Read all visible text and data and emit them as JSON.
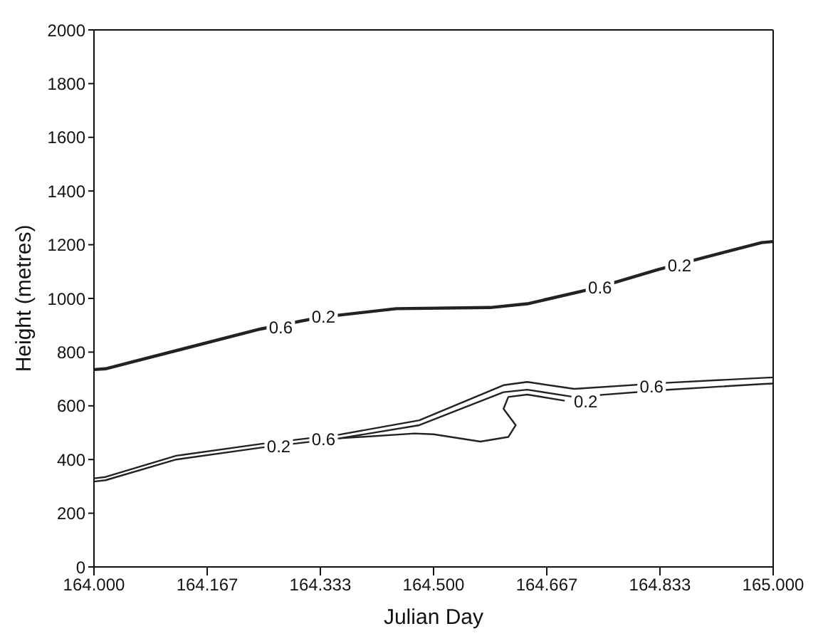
{
  "chart_data": {
    "type": "line",
    "xlabel": "Julian Day",
    "ylabel": "Height (metres)",
    "xlim": [
      164.0,
      165.0
    ],
    "xticks": [
      {
        "value": 164.0,
        "label": "164.000"
      },
      {
        "value": 164.1667,
        "label": "164.167"
      },
      {
        "value": 164.3333,
        "label": "164.333"
      },
      {
        "value": 164.5,
        "label": "164.500"
      },
      {
        "value": 164.6667,
        "label": "164.667"
      },
      {
        "value": 164.8333,
        "label": "164.833"
      },
      {
        "value": 165.0,
        "label": "165.000"
      }
    ],
    "ylim": [
      0,
      2000
    ],
    "yticks": [
      0,
      200,
      400,
      600,
      800,
      1000,
      1200,
      1400,
      1600,
      1800,
      2000
    ],
    "grid": false,
    "marker": "none",
    "line_style": "solid",
    "series": [
      {
        "color": "#222222",
        "x": [
          164.0,
          164.017,
          164.245,
          164.334,
          164.445,
          164.583,
          164.638,
          164.741,
          164.831,
          164.983,
          165.0
        ],
        "values": [
          735,
          738,
          886,
          930,
          962,
          966,
          980,
          1040,
          1108,
          1208,
          1212
        ]
      },
      {
        "color": "#222222",
        "x": [
          164.0,
          164.017,
          164.121,
          164.245,
          164.362,
          164.479,
          164.603,
          164.638,
          164.707,
          164.845,
          164.983,
          165.0
        ],
        "values": [
          330,
          335,
          414,
          458,
          493,
          546,
          677,
          689,
          663,
          686,
          704,
          706
        ]
      },
      {
        "color": "#222222",
        "x": [
          164.0,
          164.017,
          164.121,
          164.245,
          164.362,
          164.479,
          164.603,
          164.638,
          164.707,
          164.845,
          164.983,
          165.0
        ],
        "values": [
          318,
          323,
          400,
          444,
          479,
          528,
          651,
          660,
          633,
          660,
          681,
          683
        ]
      },
      {
        "color": "#222222",
        "x": [
          164.362,
          164.472,
          164.5,
          164.569,
          164.61,
          164.621,
          164.603,
          164.61,
          164.638,
          164.693
        ],
        "values": [
          479,
          497,
          494,
          467,
          484,
          528,
          589,
          633,
          642,
          619
        ]
      }
    ],
    "annotations": [
      {
        "text": "0.6",
        "x": 164.275,
        "y": 892
      },
      {
        "text": "0.2",
        "x": 164.338,
        "y": 930
      },
      {
        "text": "0.6",
        "x": 164.745,
        "y": 1040
      },
      {
        "text": "0.2",
        "x": 164.862,
        "y": 1122
      },
      {
        "text": "0.2",
        "x": 164.272,
        "y": 449
      },
      {
        "text": "0.6",
        "x": 164.338,
        "y": 475
      },
      {
        "text": "0.2",
        "x": 164.724,
        "y": 616
      },
      {
        "text": "0.6",
        "x": 164.821,
        "y": 670
      }
    ]
  }
}
